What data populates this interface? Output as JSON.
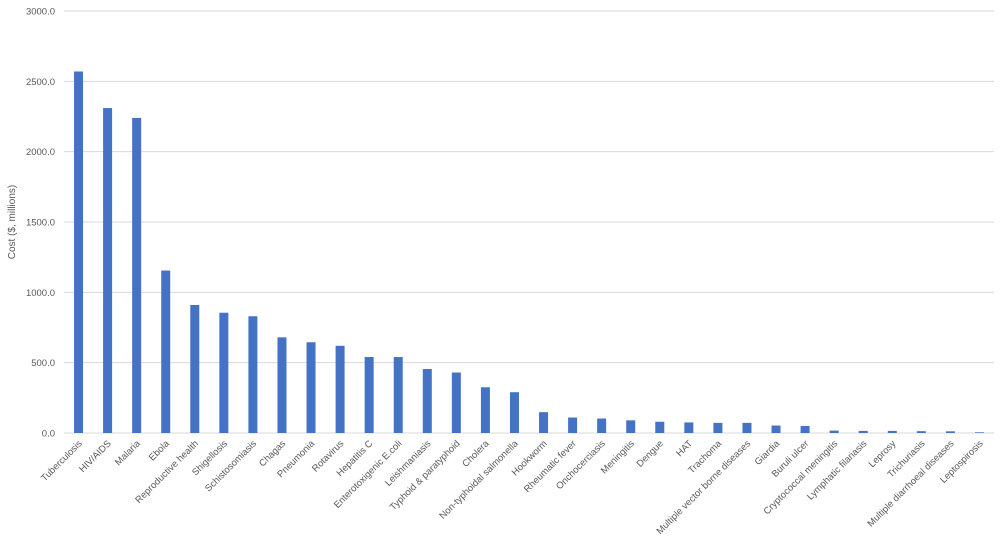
{
  "chart_data": {
    "type": "bar",
    "ylabel": "Cost ($, millions)",
    "ylim": [
      0,
      3000
    ],
    "yticks": [
      "0.0",
      "500.0",
      "1000.0",
      "1500.0",
      "2000.0",
      "2500.0",
      "3000.0"
    ],
    "grid": true,
    "bar_color": "#4472C4",
    "gridline_color": "#D9D9D9",
    "categories": [
      "Tuberculosis",
      "HIV/AIDS",
      "Malaria",
      "Ebola",
      "Reproductive health",
      "Shigellosis",
      "Schistosomiasis",
      "Chagas",
      "Pneumonia",
      "Rotavirus",
      "Hepatitis C",
      "Enterotoxigenic E.coli",
      "Leishmaniasis",
      "Typhoid & paratyphoid",
      "Cholera",
      "Non-typhoidal salmonella",
      "Hookworm",
      "Rheumatic fever",
      "Onchocerciasis",
      "Meningitis",
      "Dengue",
      "HAT",
      "Trachoma",
      "Multiple vector borne diseases",
      "Giardia",
      "Buruli ulcer",
      "Cryptococcal meningitis",
      "Lymphatic filariasis",
      "Leprosy",
      "Trichuriasis",
      "Multiple diarrhoeal diseases",
      "Leptospirosis"
    ],
    "values": [
      2570,
      2310,
      2240,
      1155,
      910,
      855,
      830,
      680,
      645,
      620,
      540,
      540,
      455,
      430,
      325,
      290,
      148,
      110,
      103,
      90,
      80,
      75,
      72,
      72,
      53,
      50,
      17,
      15,
      15,
      13,
      12,
      5
    ]
  }
}
